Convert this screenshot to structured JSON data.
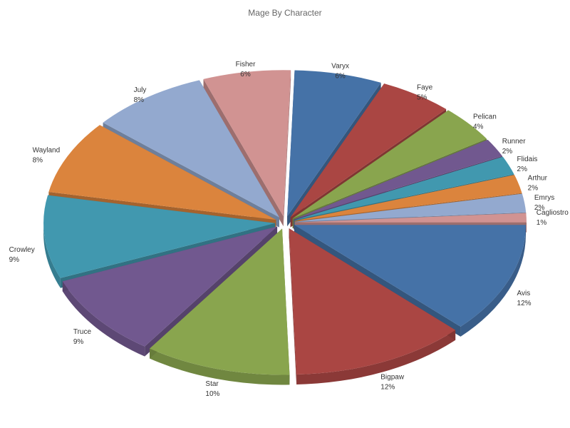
{
  "chart_data": {
    "type": "pie",
    "title": "Mage By Character",
    "style": "3d-exploded",
    "slices": [
      {
        "label": "Avis",
        "value": 12,
        "pct": "12%",
        "color": "#4572a7"
      },
      {
        "label": "Bigpaw",
        "value": 12,
        "pct": "12%",
        "color": "#aa4643"
      },
      {
        "label": "Star",
        "value": 10,
        "pct": "10%",
        "color": "#89a54e"
      },
      {
        "label": "Truce",
        "value": 9,
        "pct": "9%",
        "color": "#71588f"
      },
      {
        "label": "Crowley",
        "value": 9,
        "pct": "9%",
        "color": "#4198af"
      },
      {
        "label": "Wayland",
        "value": 8,
        "pct": "8%",
        "color": "#db843d"
      },
      {
        "label": "July",
        "value": 8,
        "pct": "8%",
        "color": "#93a9cf"
      },
      {
        "label": "Fisher",
        "value": 6,
        "pct": "6%",
        "color": "#d19392"
      },
      {
        "label": "Varyx",
        "value": 6,
        "pct": "6%",
        "color": "#4572a7"
      },
      {
        "label": "Faye",
        "value": 5,
        "pct": "5%",
        "color": "#aa4643"
      },
      {
        "label": "Pelican",
        "value": 4,
        "pct": "4%",
        "color": "#89a54e"
      },
      {
        "label": "Runner",
        "value": 2,
        "pct": "2%",
        "color": "#71588f"
      },
      {
        "label": "Flidais",
        "value": 2,
        "pct": "2%",
        "color": "#4198af"
      },
      {
        "label": "Arthur",
        "value": 2,
        "pct": "2%",
        "color": "#db843d"
      },
      {
        "label": "Emrys",
        "value": 2,
        "pct": "2%",
        "color": "#93a9cf"
      },
      {
        "label": "Cagliostro",
        "value": 1,
        "pct": "1%",
        "color": "#d19392"
      }
    ]
  }
}
